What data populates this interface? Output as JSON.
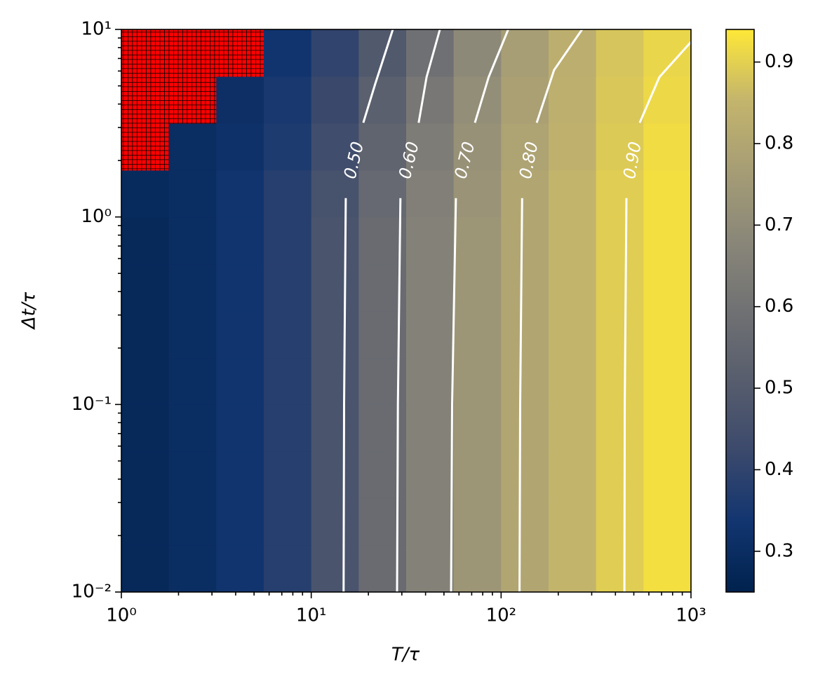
{
  "chart_data": {
    "type": "heatmap",
    "xlabel": "T/τ",
    "ylabel": "Δt/τ",
    "xscale": "log",
    "yscale": "log",
    "xlim": [
      1,
      1000
    ],
    "ylim": [
      0.01,
      10
    ],
    "xticks": [
      {
        "value": 1,
        "label": "10⁰"
      },
      {
        "value": 10,
        "label": "10¹"
      },
      {
        "value": 100,
        "label": "10²"
      },
      {
        "value": 1000,
        "label": "10³"
      }
    ],
    "yticks": [
      {
        "value": 0.01,
        "label": "10⁻²"
      },
      {
        "value": 0.1,
        "label": "10⁻¹"
      },
      {
        "value": 1,
        "label": "10⁰"
      },
      {
        "value": 10,
        "label": "10¹"
      }
    ],
    "xminorticks": [
      2,
      3,
      4,
      5,
      6,
      7,
      8,
      9,
      20,
      30,
      40,
      50,
      60,
      70,
      80,
      90,
      200,
      300,
      400,
      500,
      600,
      700,
      800,
      900
    ],
    "yminorticks": [
      0.02,
      0.03,
      0.04,
      0.05,
      0.06,
      0.07,
      0.08,
      0.09,
      0.2,
      0.3,
      0.4,
      0.5,
      0.6,
      0.7,
      0.8,
      0.9,
      2,
      3,
      4,
      5,
      6,
      7,
      8,
      9
    ],
    "x_edges": [
      1,
      1.778,
      3.162,
      5.623,
      10,
      17.78,
      31.62,
      56.23,
      100,
      177.8,
      316.2,
      562.3,
      1000
    ],
    "y_edges": [
      0.01,
      0.01778,
      0.03162,
      0.05623,
      0.1,
      0.1778,
      0.3162,
      0.5623,
      1,
      1.778,
      3.162,
      5.623,
      10
    ],
    "z": [
      [
        0.28,
        0.3,
        0.33,
        0.38,
        0.47,
        0.57,
        0.66,
        0.74,
        0.8,
        0.85,
        0.895,
        0.925
      ],
      [
        0.28,
        0.3,
        0.33,
        0.38,
        0.47,
        0.57,
        0.66,
        0.74,
        0.8,
        0.85,
        0.895,
        0.925
      ],
      [
        0.28,
        0.3,
        0.33,
        0.38,
        0.47,
        0.57,
        0.66,
        0.74,
        0.8,
        0.85,
        0.895,
        0.925
      ],
      [
        0.28,
        0.3,
        0.33,
        0.38,
        0.47,
        0.57,
        0.66,
        0.74,
        0.8,
        0.85,
        0.895,
        0.925
      ],
      [
        0.28,
        0.3,
        0.33,
        0.38,
        0.47,
        0.57,
        0.66,
        0.74,
        0.8,
        0.85,
        0.895,
        0.925
      ],
      [
        0.28,
        0.3,
        0.33,
        0.38,
        0.47,
        0.57,
        0.66,
        0.74,
        0.8,
        0.85,
        0.895,
        0.925
      ],
      [
        0.28,
        0.3,
        0.33,
        0.38,
        0.47,
        0.57,
        0.66,
        0.74,
        0.8,
        0.85,
        0.895,
        0.925
      ],
      [
        0.28,
        0.3,
        0.33,
        0.38,
        0.47,
        0.57,
        0.66,
        0.74,
        0.8,
        0.85,
        0.895,
        0.925
      ],
      [
        0.29,
        0.3,
        0.33,
        0.38,
        0.46,
        0.56,
        0.65,
        0.73,
        0.8,
        0.85,
        0.895,
        0.925
      ],
      [
        null,
        0.3,
        0.32,
        0.36,
        0.44,
        0.54,
        0.64,
        0.72,
        0.79,
        0.84,
        0.89,
        0.92
      ],
      [
        null,
        null,
        0.31,
        0.35,
        0.42,
        0.52,
        0.62,
        0.71,
        0.78,
        0.835,
        0.885,
        0.915
      ],
      [
        null,
        null,
        null,
        0.33,
        0.4,
        0.49,
        0.59,
        0.69,
        0.77,
        0.83,
        0.88,
        0.91
      ]
    ],
    "clim": [
      0.25,
      0.94
    ],
    "colormap": [
      "#00224e",
      "#123570",
      "#3b496c",
      "#575d6d",
      "#707173",
      "#8a8779",
      "#a69d75",
      "#c4b56c",
      "#fee838"
    ],
    "masked_color": "#ff0000",
    "contour_color": "#ffffff",
    "contours": [
      {
        "label": "0.50",
        "x": [
          14.8,
          14.9,
          15.2,
          null,
          18.8,
          21.7,
          26.9
        ],
        "y": [
          0.01,
          0.1,
          1.26,
          null,
          3.18,
          5.1,
          10
        ]
      },
      {
        "label": "0.60",
        "x": [
          28.3,
          28.6,
          29.5,
          null,
          36.8,
          40.5,
          47.6
        ],
        "y": [
          0.01,
          0.1,
          1.26,
          null,
          3.18,
          5.57,
          10
        ]
      },
      {
        "label": "0.70",
        "x": [
          54.5,
          55.2,
          57.8,
          null,
          72.8,
          86,
          109
        ],
        "y": [
          0.01,
          0.1,
          1.26,
          null,
          3.18,
          5.57,
          10
        ]
      },
      {
        "label": "0.80",
        "x": [
          125,
          126,
          129,
          null,
          154,
          190,
          267
        ],
        "y": [
          0.01,
          0.1,
          1.26,
          null,
          3.18,
          6.07,
          10
        ]
      },
      {
        "label": "0.90",
        "x": [
          446,
          448,
          457,
          null,
          537,
          682,
          1000
        ],
        "y": [
          0.01,
          0.1,
          1.26,
          null,
          3.18,
          5.57,
          8.57
        ]
      }
    ],
    "colorbar_ticks": [
      0.3,
      0.4,
      0.5,
      0.6,
      0.7,
      0.8,
      0.9
    ]
  }
}
